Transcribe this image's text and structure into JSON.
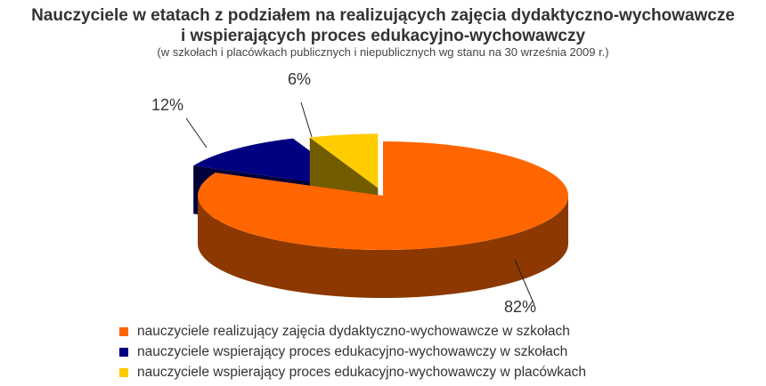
{
  "title_line1": "Nauczyciele w etatach z podziałem na realizujących zajęcia dydaktyczno-wychowawcze",
  "title_line2": "i wspierających proces edukacyjno-wychowawczy",
  "subtitle": "(w szkołach i placówkach publicznych i niepublicznych wg stanu na 30 września 2009 r.)",
  "chart_data": {
    "type": "pie",
    "three_d": true,
    "exploded": true,
    "categories": [
      "nauczyciele realizujący zajęcia dydaktyczno-wychowawcze w szkołach",
      "nauczyciele wspierający proces edukacyjno-wychowawczy w szkołach",
      "nauczyciele wspierający proces edukacyjno-wychowawczy w placówkach"
    ],
    "values": [
      82,
      12,
      6
    ],
    "data_labels": [
      "82%",
      "12%",
      "6%"
    ],
    "colors": [
      "#ff6600",
      "#000080",
      "#ffcc00"
    ],
    "legend_position": "bottom"
  }
}
